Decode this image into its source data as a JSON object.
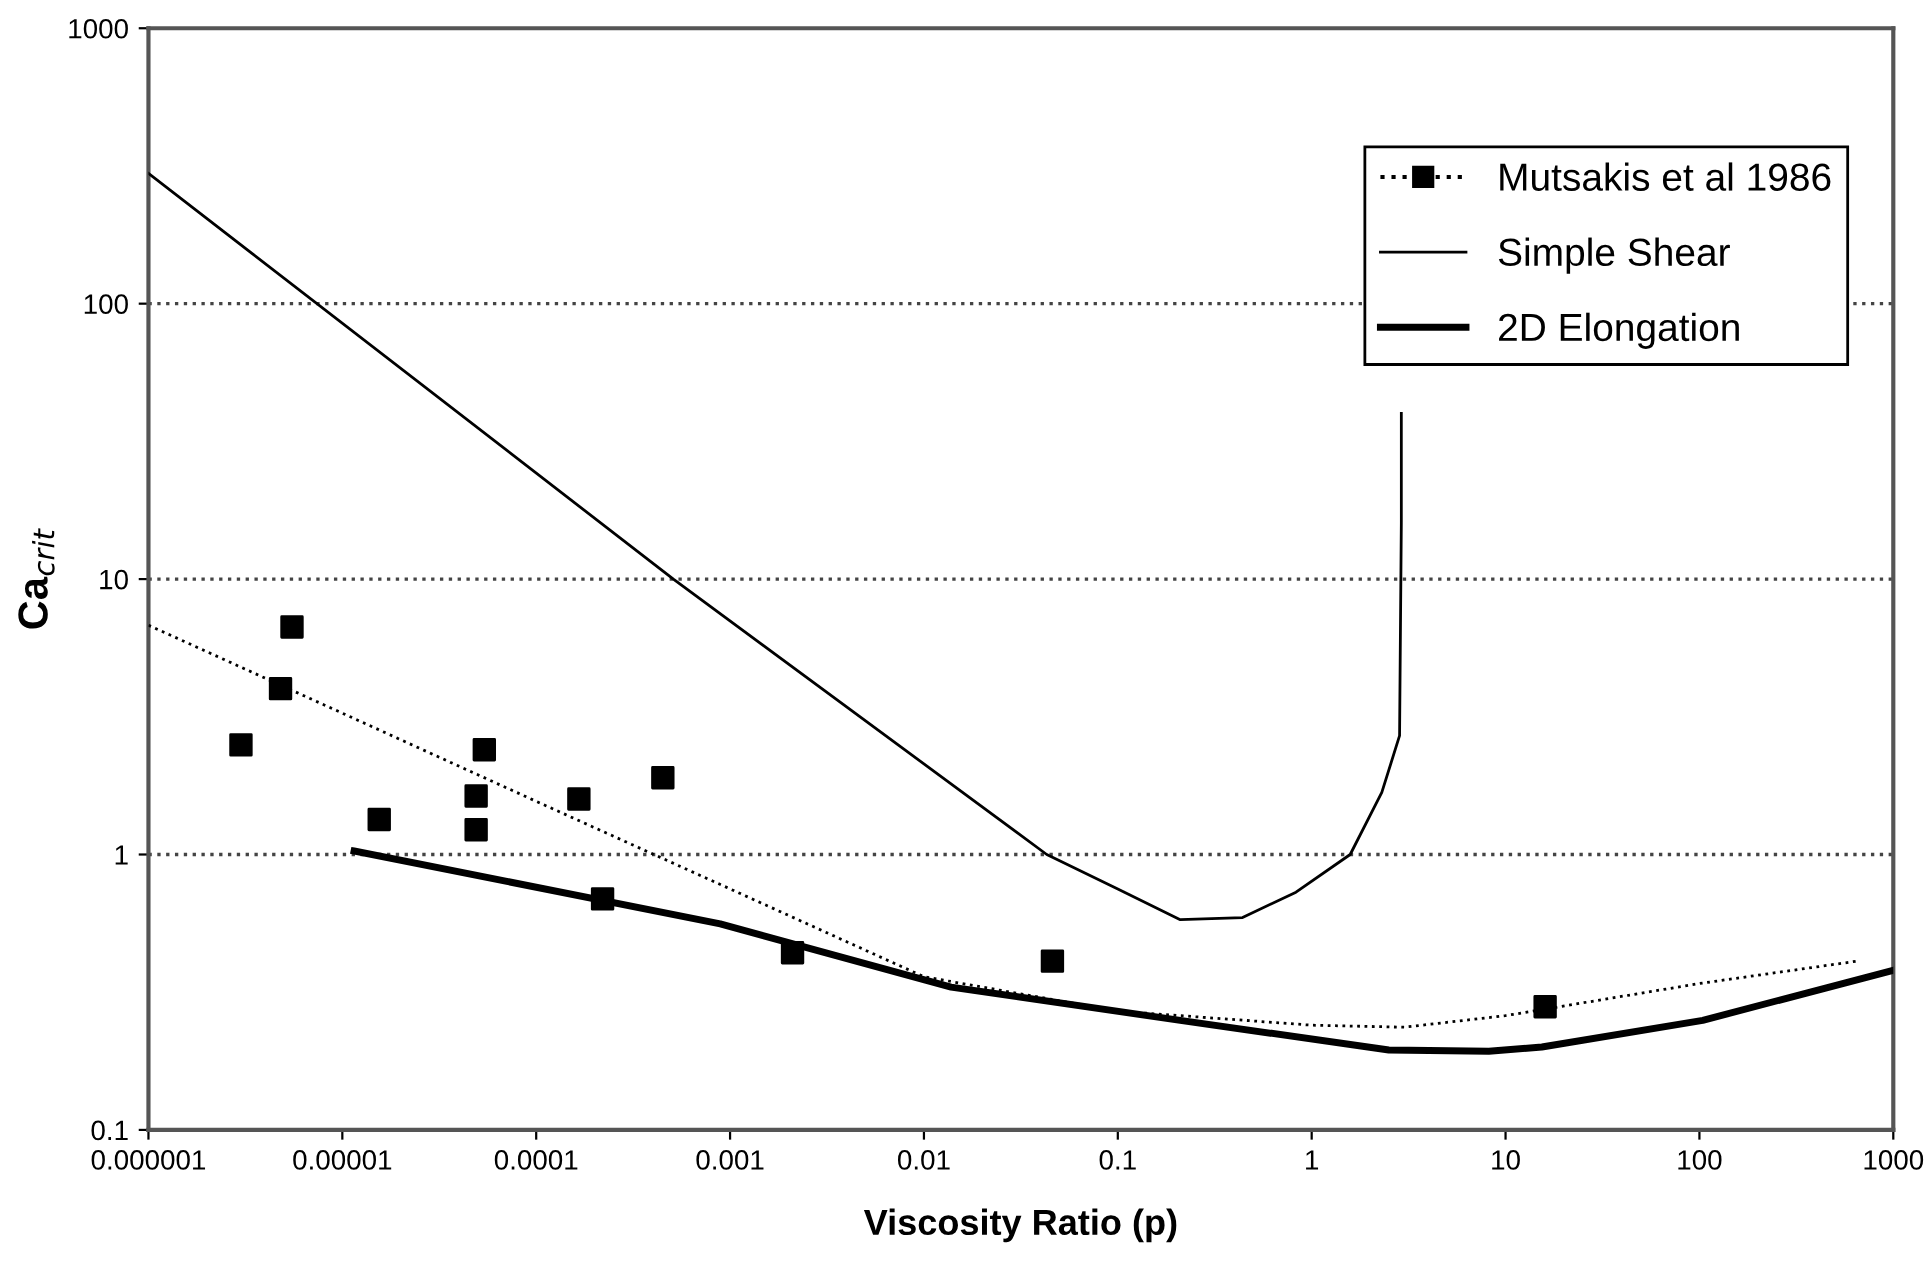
{
  "chart_data": {
    "type": "line",
    "xlabel": "Viscosity Ratio (p)",
    "ylabel": "Ca$_{crit}$",
    "log": "xy",
    "xlim": [
      1e-06,
      1000
    ],
    "ylim": [
      0.1,
      1000
    ],
    "xticks": [
      {
        "value": 1e-06,
        "label": "0.000001"
      },
      {
        "value": 1e-05,
        "label": "0.00001"
      },
      {
        "value": 0.0001,
        "label": "0.0001"
      },
      {
        "value": 0.001,
        "label": "0.001"
      },
      {
        "value": 0.01,
        "label": "0.01"
      },
      {
        "value": 0.1,
        "label": "0.1"
      },
      1,
      10,
      100,
      1000
    ],
    "yticks": [
      0.1,
      1,
      10,
      100,
      1000
    ],
    "grid": "y",
    "legend": "top right",
    "series": [
      {
        "name": "Mutsakis et al 1986",
        "type": "scatter",
        "color": "#000000",
        "marker": "square",
        "line_style": "dotted",
        "x": [
          3e-06,
          5.5e-06,
          4.8e-06,
          1.55e-05,
          5.4e-05,
          4.9e-05,
          4.9e-05,
          0.000166,
          0.00045,
          0.00022,
          0.0021,
          0.046,
          16
        ],
        "values": [
          2.5,
          6.7,
          4.0,
          1.34,
          2.4,
          1.63,
          1.23,
          1.59,
          1.9,
          0.69,
          0.44,
          0.41,
          0.28
        ]
      },
      {
        "color": "#000000",
        "line_style": "dotted",
        "x": [
          1e-06,
          1e-05,
          0.0001,
          0.001,
          0.01,
          0.1,
          1,
          3,
          10,
          100,
          650
        ],
        "values": [
          6.8,
          3.26,
          1.56,
          0.75,
          0.36,
          0.27,
          0.24,
          0.236,
          0.26,
          0.34,
          0.41
        ]
      },
      {
        "name": "Simple Shear",
        "color": "#000000",
        "line_style": "solid",
        "x": [
          1e-06,
          0.00051,
          0.043,
          0.1,
          0.21,
          0.44,
          0.83,
          1.58,
          2.3,
          2.84,
          2.9,
          2.9
        ],
        "values": [
          297,
          10,
          1.0,
          0.75,
          0.58,
          0.59,
          0.73,
          1.0,
          1.68,
          2.7,
          16,
          40
        ]
      },
      {
        "name": "2D Elongation",
        "color": "#000000",
        "line_style": "solid",
        "x": [
          1.15e-05,
          0.00089,
          0.0138,
          0.21,
          2.5,
          8.2,
          15.4,
          104,
          1000
        ],
        "values": [
          1.03,
          0.56,
          0.33,
          0.25,
          0.195,
          0.193,
          0.2,
          0.25,
          0.38
        ]
      }
    ]
  }
}
